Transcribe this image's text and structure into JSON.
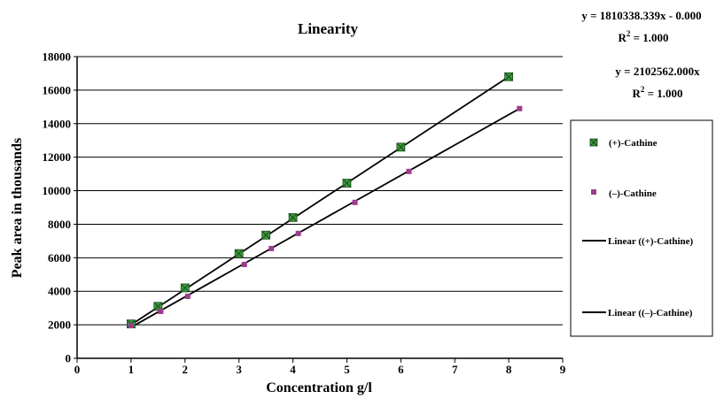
{
  "chart_data": {
    "type": "scatter",
    "title": "Linearity",
    "xlabel": "Concentration g/l",
    "ylabel": "Peak area in thousands",
    "xlim": [
      0,
      9
    ],
    "ylim": [
      0,
      18000
    ],
    "x_ticks": [
      "0",
      "1",
      "2",
      "3",
      "4",
      "5",
      "6",
      "7",
      "8",
      "9"
    ],
    "y_ticks": [
      "0",
      "2000",
      "4000",
      "6000",
      "8000",
      "10000",
      "12000",
      "14000",
      "16000",
      "18000"
    ],
    "grid": "horizontal",
    "legend_position": "right",
    "series": [
      {
        "name": "(+)-Cathine",
        "marker": "square-x",
        "color": "#3c9a3c",
        "x": [
          1,
          1.5,
          2,
          3,
          3.5,
          4,
          5,
          6,
          8
        ],
        "y": [
          2050,
          3100,
          4200,
          6250,
          7350,
          8400,
          10450,
          12600,
          16800
        ]
      },
      {
        "name": "(–)-Cathine",
        "marker": "square",
        "color": "#9b3d8c",
        "x": [
          1,
          1.55,
          2.05,
          3.1,
          3.6,
          4.1,
          5.15,
          6.15,
          8.2
        ],
        "y": [
          1950,
          2800,
          3700,
          5600,
          6550,
          7450,
          9300,
          11150,
          14900
        ]
      }
    ],
    "trendlines": [
      {
        "name": "Linear ((+)-Cathine)",
        "color": "#000000",
        "x": [
          1,
          8
        ],
        "y": [
          2000,
          16800
        ],
        "equation": "y = 1810338.339x - 0.000",
        "r2_label": "R",
        "r2_exp": "2",
        "r2_value": " = 1.000"
      },
      {
        "name": "Linear ((–)-Cathine)",
        "color": "#000000",
        "x": [
          1,
          8.2
        ],
        "y": [
          1850,
          14900
        ],
        "equation": "y = 2102562.000x",
        "r2_label": "R",
        "r2_exp": "2",
        "r2_value": " = 1.000"
      }
    ]
  }
}
